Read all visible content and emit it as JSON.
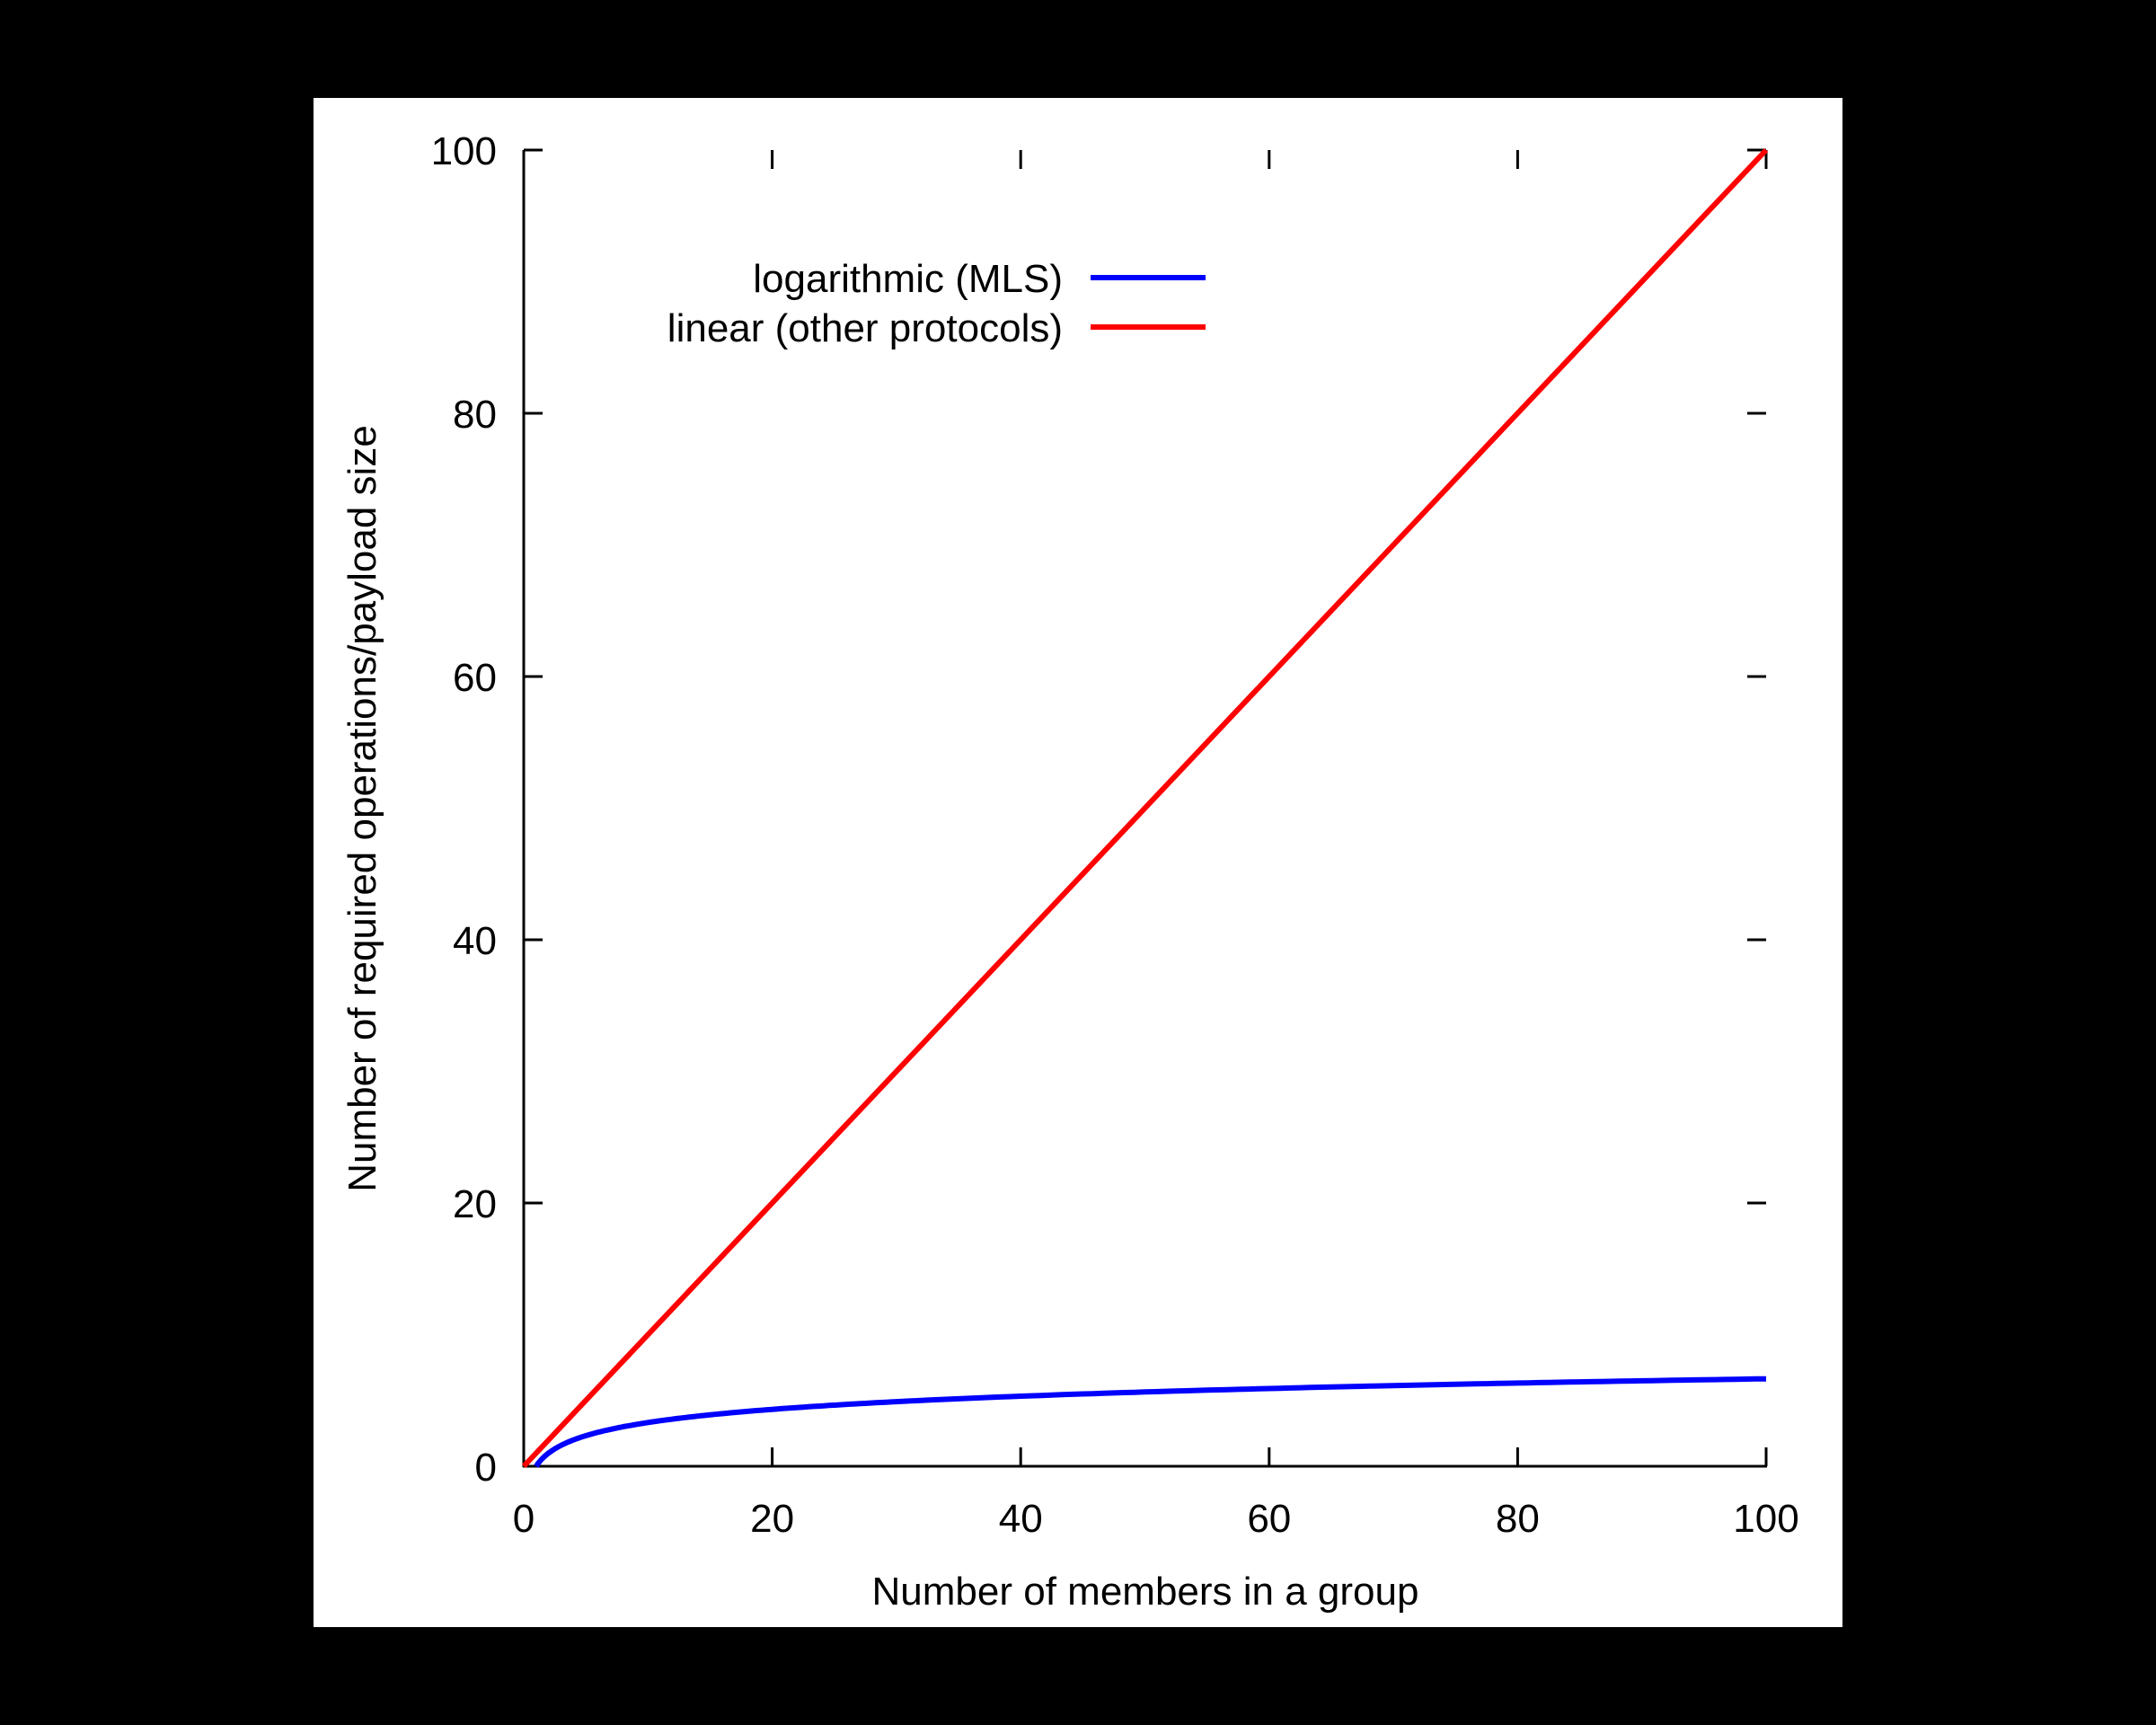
{
  "colors": {
    "background": "#000000",
    "panel": "#ffffff",
    "axis": "#000000",
    "logarithmic": "#0000ff",
    "linear": "#ff0000"
  },
  "chart_data": {
    "type": "line",
    "title": "",
    "xlabel": "Number of members in a group",
    "ylabel": "Number of required operations/payload size",
    "xlim": [
      0,
      100
    ],
    "ylim": [
      0,
      100
    ],
    "xticks": [
      0,
      20,
      40,
      60,
      80,
      100
    ],
    "yticks": [
      0,
      20,
      40,
      60,
      80,
      100
    ],
    "grid": false,
    "legend_position": "upper left (inside plot)",
    "series": [
      {
        "name": "logarithmic (MLS)",
        "color": "#0000ff",
        "x": [
          1,
          2,
          3,
          4,
          5,
          6,
          8,
          10,
          12,
          15,
          20,
          25,
          30,
          40,
          50,
          60,
          70,
          80,
          90,
          100
        ],
        "y": [
          0,
          1,
          1.585,
          2,
          2.322,
          2.585,
          3,
          3.322,
          3.585,
          3.907,
          4.322,
          4.644,
          4.907,
          5.322,
          5.644,
          5.907,
          6.129,
          6.322,
          6.492,
          6.644
        ]
      },
      {
        "name": "linear (other protocols)",
        "color": "#ff0000",
        "x": [
          0,
          100
        ],
        "y": [
          0,
          100
        ]
      }
    ]
  }
}
